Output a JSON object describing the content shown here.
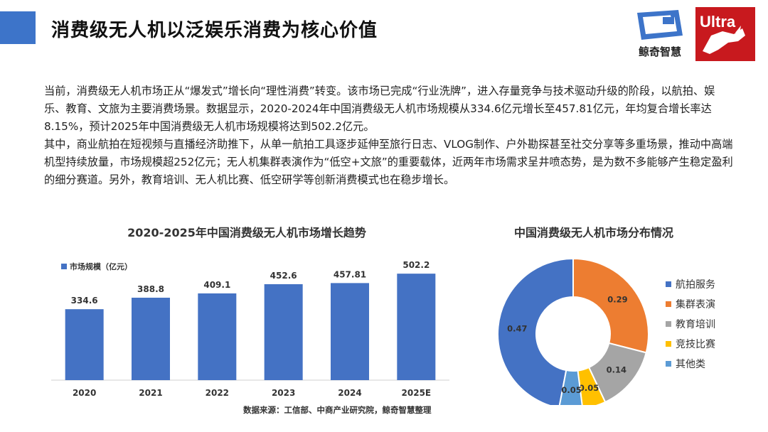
{
  "header": {
    "title": "消费级无人机以泛娱乐消费为核心价值",
    "accent_color": "#3d74c9",
    "logo_jingqi_text": "鲸奇智慧",
    "logo_ultra_text": "Ultra"
  },
  "intro": {
    "paragraph1": "当前，消费级无人机市场正从“爆发式”增长向“理性消费”转变。该市场已完成“行业洗牌”，进入存量竞争与技术驱动升级的阶段，以航拍、娱乐、教育、文旅为主要消费场景。数据显示，2020-2024年中国消费级无人机市场规模从334.6亿元增长至457.81亿元，年均复合增长率达8.15%，预计2025年中国消费级无人机市场规模将达到502.2亿元。",
    "paragraph2": "其中，商业航拍在短视频与直播经济助推下，从单一航拍工具逐步延伸至旅行日志、VLOG制作、户外勘探甚至社交分享等多重场景，推动中高端机型持续放量，市场规模超252亿元；无人机集群表演作为“低空+文旅”的重要载体，近两年市场需求呈井喷态势，是为数不多能够产生稳定盈利的细分赛道。另外，教育培训、无人机比赛、低空研学等创新消费模式也在稳步增长。"
  },
  "source_note": "数据来源：工信部、中商产业研究院，鲸奇智慧整理",
  "chart_data": [
    {
      "type": "bar",
      "title": "2020-2025年中国消费级无人机市场增长趋势",
      "categories": [
        "2020",
        "2021",
        "2022",
        "2023",
        "2024",
        "2025E"
      ],
      "series": [
        {
          "name": "市场规模（亿元）",
          "values": [
            334.6,
            388.8,
            409.1,
            452.6,
            457.81,
            502.2
          ],
          "color": "#4472c4"
        }
      ],
      "ylim": [
        0,
        620
      ],
      "grid": false,
      "legend": "top-left"
    },
    {
      "type": "pie",
      "title": "中国消费级无人机市场分布情况",
      "categories": [
        "航拍服务",
        "集群表演",
        "教育培训",
        "竞技比赛",
        "其他类"
      ],
      "values": [
        0.47,
        0.29,
        0.14,
        0.05,
        0.05
      ],
      "colors": [
        "#4472c4",
        "#ed7d31",
        "#a5a5a5",
        "#ffc000",
        "#5b9bd5"
      ],
      "legend": "right"
    }
  ]
}
